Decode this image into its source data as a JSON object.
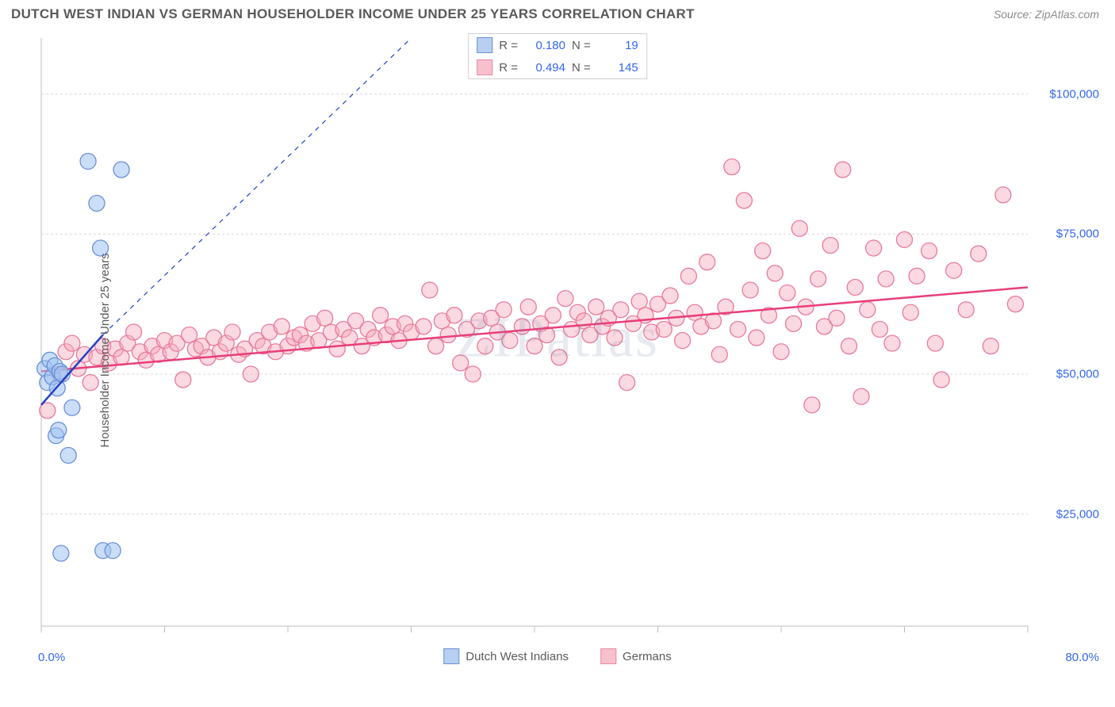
{
  "header": {
    "title": "DUTCH WEST INDIAN VS GERMAN HOUSEHOLDER INCOME UNDER 25 YEARS CORRELATION CHART",
    "source": "Source: ZipAtlas.com"
  },
  "watermark": "ZIPatlas",
  "chart": {
    "type": "scatter",
    "ylabel": "Householder Income Under 25 years",
    "xlim": [
      0,
      80
    ],
    "ylim": [
      5000,
      110000
    ],
    "yticks": [
      25000,
      50000,
      75000,
      100000
    ],
    "ytick_labels": [
      "$25,000",
      "$50,000",
      "$75,000",
      "$100,000"
    ],
    "xticks": [
      0,
      10,
      20,
      30,
      40,
      50,
      60,
      70,
      80
    ],
    "x_axis_lab_left": "0.0%",
    "x_axis_lab_right": "80.0%",
    "grid_color": "#d8d8d8",
    "axis_color": "#bdbdbd",
    "legend_top": [
      {
        "swatch_fill": "#b8d0f0",
        "swatch_border": "#6a8fd8",
        "r_label": "R =",
        "r": "0.180",
        "n_label": "N =",
        "n": "19"
      },
      {
        "swatch_fill": "#f7c0cd",
        "swatch_border": "#e88aa3",
        "r_label": "R =",
        "r": "0.494",
        "n_label": "N =",
        "n": "145"
      }
    ],
    "legend_bottom": [
      {
        "swatch_fill": "#b8d0f0",
        "swatch_border": "#6a8fd8",
        "label": "Dutch West Indians"
      },
      {
        "swatch_fill": "#f7c0cd",
        "swatch_border": "#e88aa3",
        "label": "Germans"
      }
    ],
    "series": [
      {
        "name": "Germans",
        "color_fill": "rgba(247,170,190,0.45)",
        "color_stroke": "#e87a98",
        "marker_r": 10,
        "trend_color": "#e83e7a",
        "trend": {
          "x1": 0,
          "y1": 50500,
          "x2": 80,
          "y2": 65500
        },
        "points": [
          [
            0.5,
            43500
          ],
          [
            1.5,
            50000
          ],
          [
            2,
            54000
          ],
          [
            2.5,
            55500
          ],
          [
            3,
            51000
          ],
          [
            3.5,
            53500
          ],
          [
            4,
            48500
          ],
          [
            4.5,
            53000
          ],
          [
            5,
            55000
          ],
          [
            5.5,
            52000
          ],
          [
            6,
            54500
          ],
          [
            6.5,
            53000
          ],
          [
            7,
            55500
          ],
          [
            7.5,
            57500
          ],
          [
            8,
            54000
          ],
          [
            8.5,
            52500
          ],
          [
            9,
            55000
          ],
          [
            9.5,
            53500
          ],
          [
            10,
            56000
          ],
          [
            10.5,
            54000
          ],
          [
            11,
            55500
          ],
          [
            11.5,
            49000
          ],
          [
            12,
            57000
          ],
          [
            12.5,
            54500
          ],
          [
            13,
            55000
          ],
          [
            13.5,
            53000
          ],
          [
            14,
            56500
          ],
          [
            14.5,
            54000
          ],
          [
            15,
            55500
          ],
          [
            15.5,
            57500
          ],
          [
            16,
            53500
          ],
          [
            16.5,
            54500
          ],
          [
            17,
            50000
          ],
          [
            17.5,
            56000
          ],
          [
            18,
            55000
          ],
          [
            18.5,
            57500
          ],
          [
            19,
            54000
          ],
          [
            19.5,
            58500
          ],
          [
            20,
            55000
          ],
          [
            20.5,
            56500
          ],
          [
            21,
            57000
          ],
          [
            21.5,
            55500
          ],
          [
            22,
            59000
          ],
          [
            22.5,
            56000
          ],
          [
            23,
            60000
          ],
          [
            23.5,
            57500
          ],
          [
            24,
            54500
          ],
          [
            24.5,
            58000
          ],
          [
            25,
            56500
          ],
          [
            25.5,
            59500
          ],
          [
            26,
            55000
          ],
          [
            26.5,
            58000
          ],
          [
            27,
            56500
          ],
          [
            27.5,
            60500
          ],
          [
            28,
            57000
          ],
          [
            28.5,
            58500
          ],
          [
            29,
            56000
          ],
          [
            29.5,
            59000
          ],
          [
            30,
            57500
          ],
          [
            31,
            58500
          ],
          [
            31.5,
            65000
          ],
          [
            32,
            55000
          ],
          [
            32.5,
            59500
          ],
          [
            33,
            57000
          ],
          [
            33.5,
            60500
          ],
          [
            34,
            52000
          ],
          [
            34.5,
            58000
          ],
          [
            35,
            50000
          ],
          [
            35.5,
            59500
          ],
          [
            36,
            55000
          ],
          [
            36.5,
            60000
          ],
          [
            37,
            57500
          ],
          [
            37.5,
            61500
          ],
          [
            38,
            56000
          ],
          [
            39,
            58500
          ],
          [
            39.5,
            62000
          ],
          [
            40,
            55000
          ],
          [
            40.5,
            59000
          ],
          [
            41,
            57000
          ],
          [
            41.5,
            60500
          ],
          [
            42,
            53000
          ],
          [
            42.5,
            63500
          ],
          [
            43,
            58000
          ],
          [
            43.5,
            61000
          ],
          [
            44,
            59500
          ],
          [
            44.5,
            57000
          ],
          [
            45,
            62000
          ],
          [
            45.5,
            58500
          ],
          [
            46,
            60000
          ],
          [
            46.5,
            56500
          ],
          [
            47,
            61500
          ],
          [
            47.5,
            48500
          ],
          [
            48,
            59000
          ],
          [
            48.5,
            63000
          ],
          [
            49,
            60500
          ],
          [
            49.5,
            57500
          ],
          [
            50,
            62500
          ],
          [
            50.5,
            58000
          ],
          [
            51,
            64000
          ],
          [
            51.5,
            60000
          ],
          [
            52,
            56000
          ],
          [
            52.5,
            67500
          ],
          [
            53,
            61000
          ],
          [
            53.5,
            58500
          ],
          [
            54,
            70000
          ],
          [
            54.5,
            59500
          ],
          [
            55,
            53500
          ],
          [
            55.5,
            62000
          ],
          [
            56,
            87000
          ],
          [
            56.5,
            58000
          ],
          [
            57,
            81000
          ],
          [
            57.5,
            65000
          ],
          [
            58,
            56500
          ],
          [
            58.5,
            72000
          ],
          [
            59,
            60500
          ],
          [
            59.5,
            68000
          ],
          [
            60,
            54000
          ],
          [
            60.5,
            64500
          ],
          [
            61,
            59000
          ],
          [
            61.5,
            76000
          ],
          [
            62,
            62000
          ],
          [
            62.5,
            44500
          ],
          [
            63,
            67000
          ],
          [
            63.5,
            58500
          ],
          [
            64,
            73000
          ],
          [
            64.5,
            60000
          ],
          [
            65,
            86500
          ],
          [
            65.5,
            55000
          ],
          [
            66,
            65500
          ],
          [
            66.5,
            46000
          ],
          [
            67,
            61500
          ],
          [
            67.5,
            72500
          ],
          [
            68,
            58000
          ],
          [
            68.5,
            67000
          ],
          [
            69,
            55500
          ],
          [
            70,
            74000
          ],
          [
            70.5,
            61000
          ],
          [
            71,
            67500
          ],
          [
            72,
            72000
          ],
          [
            72.5,
            55500
          ],
          [
            73,
            49000
          ],
          [
            74,
            68500
          ],
          [
            75,
            61500
          ],
          [
            76,
            71500
          ],
          [
            77,
            55000
          ],
          [
            78,
            82000
          ],
          [
            79,
            62500
          ]
        ]
      },
      {
        "name": "Dutch West Indians",
        "color_fill": "rgba(160,195,240,0.55)",
        "color_stroke": "#6a8fd8",
        "marker_r": 10,
        "trend_color": "#2042c8",
        "trend": {
          "x1": 0,
          "y1": 44500,
          "x2": 5,
          "y2": 57000
        },
        "trend_dashed": {
          "x1": 5,
          "y1": 57000,
          "x2": 30,
          "y2": 119500
        },
        "points": [
          [
            0.3,
            51000
          ],
          [
            0.5,
            48500
          ],
          [
            0.7,
            52500
          ],
          [
            0.9,
            49500
          ],
          [
            1.1,
            51500
          ],
          [
            1.3,
            47500
          ],
          [
            1.5,
            50500
          ],
          [
            1.7,
            50000
          ],
          [
            1.2,
            39000
          ],
          [
            1.4,
            40000
          ],
          [
            2.5,
            44000
          ],
          [
            2.2,
            35500
          ],
          [
            3.8,
            88000
          ],
          [
            4.5,
            80500
          ],
          [
            4.8,
            72500
          ],
          [
            6.5,
            86500
          ],
          [
            1.6,
            18000
          ],
          [
            5.0,
            18500
          ],
          [
            5.8,
            18500
          ]
        ]
      }
    ]
  }
}
